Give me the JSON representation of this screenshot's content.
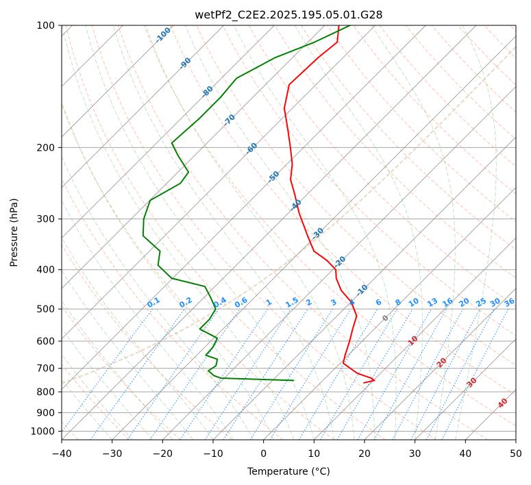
{
  "chart_data": {
    "type": "line",
    "title": "wetPf2_C2E2.2025.195.05.01.G28",
    "xlabel": "Temperature (°C)",
    "ylabel": "Pressure (hPa)",
    "xlim": [
      -40,
      50
    ],
    "ylim": [
      1050,
      100
    ],
    "y_scale": "log",
    "skew_deg": 45,
    "grid": true,
    "x_ticks": [
      -40,
      -30,
      -20,
      -10,
      0,
      10,
      20,
      30,
      40,
      50
    ],
    "y_ticks": [
      100,
      200,
      300,
      400,
      500,
      600,
      700,
      800,
      900,
      1000
    ],
    "series": [
      {
        "color": "#ff0000",
        "quantity": "temperature",
        "points": [
          {
            "p": 100,
            "t": -67.2
          },
          {
            "p": 110,
            "t": -64.2
          },
          {
            "p": 120,
            "t": -64.9
          },
          {
            "p": 140,
            "t": -65.3
          },
          {
            "p": 160,
            "t": -61.6
          },
          {
            "p": 180,
            "t": -56.8
          },
          {
            "p": 200,
            "t": -52.6
          },
          {
            "p": 220,
            "t": -48.9
          },
          {
            "p": 240,
            "t": -46.2
          },
          {
            "p": 260,
            "t": -42.6
          },
          {
            "p": 290,
            "t": -37.9
          },
          {
            "p": 330,
            "t": -31.7
          },
          {
            "p": 360,
            "t": -27.4
          },
          {
            "p": 380,
            "t": -22.9
          },
          {
            "p": 400,
            "t": -19.4
          },
          {
            "p": 420,
            "t": -17.6
          },
          {
            "p": 450,
            "t": -14.2
          },
          {
            "p": 480,
            "t": -10.0
          },
          {
            "p": 520,
            "t": -6.1
          },
          {
            "p": 560,
            "t": -4.3
          },
          {
            "p": 600,
            "t": -2.5
          },
          {
            "p": 650,
            "t": -0.6
          },
          {
            "p": 680,
            "t": 0.6
          },
          {
            "p": 720,
            "t": 5.4
          },
          {
            "p": 740,
            "t": 9.1
          },
          {
            "p": 750,
            "t": 10.2
          },
          {
            "p": 760,
            "t": 8.6
          }
        ]
      },
      {
        "color": "#008000",
        "quantity": "dewpoint",
        "points": [
          {
            "p": 100,
            "t": -65.0
          },
          {
            "p": 110,
            "t": -68.7
          },
          {
            "p": 120,
            "t": -73.4
          },
          {
            "p": 135,
            "t": -77.0
          },
          {
            "p": 150,
            "t": -76.4
          },
          {
            "p": 170,
            "t": -76.4
          },
          {
            "p": 195,
            "t": -77.0
          },
          {
            "p": 210,
            "t": -73.1
          },
          {
            "p": 230,
            "t": -67.9
          },
          {
            "p": 245,
            "t": -67.3
          },
          {
            "p": 270,
            "t": -69.9
          },
          {
            "p": 300,
            "t": -67.5
          },
          {
            "p": 330,
            "t": -64.3
          },
          {
            "p": 360,
            "t": -57.9
          },
          {
            "p": 390,
            "t": -55.5
          },
          {
            "p": 420,
            "t": -50.2
          },
          {
            "p": 440,
            "t": -42.0
          },
          {
            "p": 470,
            "t": -38.5
          },
          {
            "p": 500,
            "t": -35.4
          },
          {
            "p": 530,
            "t": -34.6
          },
          {
            "p": 560,
            "t": -34.6
          },
          {
            "p": 590,
            "t": -29.3
          },
          {
            "p": 620,
            "t": -28.4
          },
          {
            "p": 650,
            "t": -28.2
          },
          {
            "p": 665,
            "t": -25.1
          },
          {
            "p": 690,
            "t": -24.1
          },
          {
            "p": 710,
            "t": -24.6
          },
          {
            "p": 730,
            "t": -22.5
          },
          {
            "p": 740,
            "t": -20.7
          },
          {
            "p": 750,
            "t": -5.8
          }
        ]
      }
    ],
    "temperature_labels": [
      "-100",
      "-90",
      "-80",
      "-70",
      "-60",
      "-50",
      "-40",
      "-30",
      "-20",
      "-10",
      "0",
      "10",
      "20",
      "30",
      "40"
    ],
    "mixing_ratio_labels": [
      "0.1",
      "0.2",
      "0.4",
      "0.6",
      "1",
      "1.5",
      "2",
      "3",
      "4",
      "6",
      "8",
      "10",
      "13",
      "16",
      "20",
      "25",
      "30",
      "36"
    ],
    "mixing_ratio_values": [
      0.1,
      0.2,
      0.4,
      0.6,
      1,
      1.5,
      2,
      3,
      4,
      6,
      8,
      10,
      13,
      16,
      20,
      25,
      30,
      36
    ],
    "colors": {
      "temperature": "#ff0000",
      "dewpoint": "#008000",
      "isotherm": "#808080",
      "dry_adiabat": "#ff8c69",
      "moist_adiabat": "#90c890",
      "mixing_ratio": "#1e90ff",
      "iso_label_cold": "#1f77b4",
      "iso_label_zero": "#808080",
      "iso_label_warm": "#d62728",
      "curve_tan": "#d2b48c"
    }
  }
}
